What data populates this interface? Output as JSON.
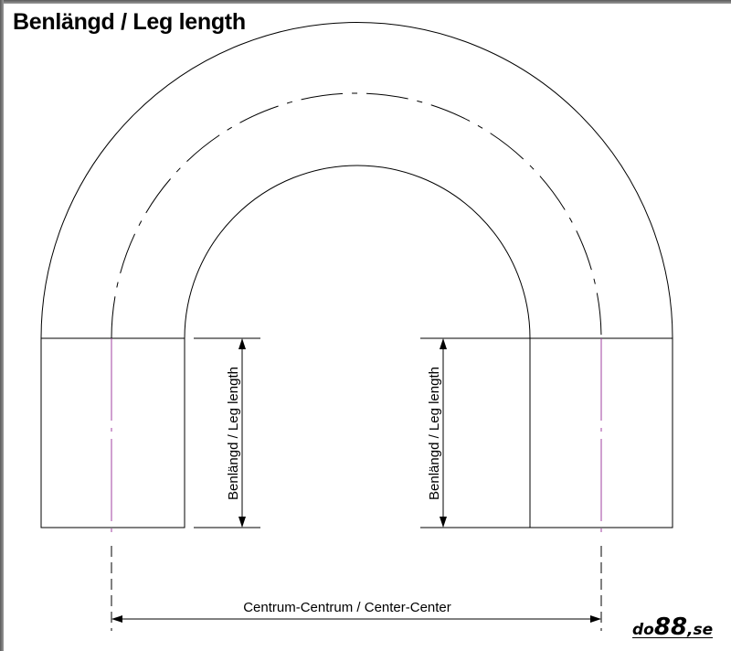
{
  "title": "Benlängd / Leg length",
  "labels": {
    "leg_length_left": "Benlängd / Leg length",
    "leg_length_right": "Benlängd / Leg length",
    "center_center": "Centrum-Centrum / Center-Center"
  },
  "logo": {
    "prefix": "do",
    "number": "88",
    "suffix": ",se"
  },
  "colors": {
    "line": "#000000",
    "centerline": "#a040a0",
    "frame": "#6a6a6a"
  }
}
